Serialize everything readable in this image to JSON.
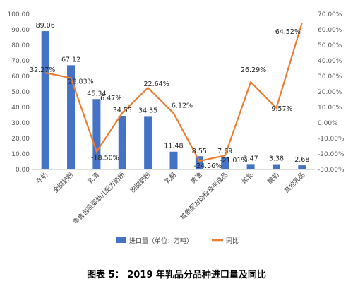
{
  "caption": "图表 5： 2019 年乳品分品种进口量及同比",
  "chart_data": {
    "type": "bar",
    "categories": [
      "牛奶",
      "全脂奶粉",
      "乳清",
      "零售包装婴幼儿配方奶粉",
      "脱脂奶粉",
      "乳酪",
      "黄油",
      "其他配方奶粉及半成品",
      "炼乳",
      "酸奶",
      "其他乳品"
    ],
    "series": [
      {
        "name": "进口量（单位：万吨）",
        "type": "bar",
        "axis": "left",
        "color": "#4472C4",
        "values": [
          89.06,
          67.12,
          45.34,
          34.55,
          34.35,
          11.48,
          8.55,
          7.69,
          3.47,
          3.38,
          2.68
        ],
        "labels": [
          "89.06",
          "67.12",
          "45.34",
          "34.55",
          "34.35",
          "11.48",
          "8.55",
          "7.69",
          "3.47",
          "3.38",
          "2.68"
        ]
      },
      {
        "name": "同比",
        "type": "line",
        "axis": "right",
        "color": "#ED7D31",
        "values": [
          32.27,
          28.83,
          -18.5,
          6.47,
          22.64,
          6.12,
          -24.56,
          -21.01,
          26.29,
          9.57,
          64.52
        ],
        "labels": [
          "32.27%",
          "28.83%",
          "-18.50%",
          "6.47%",
          "22.64%",
          "6.12%",
          "-24.56%",
          "-21.01%",
          "26.29%",
          "9.57%",
          "64.52%"
        ]
      }
    ],
    "y_left": {
      "min": 0,
      "max": 100,
      "ticks": [
        "0.00",
        "10.00",
        "20.00",
        "30.00",
        "40.00",
        "50.00",
        "60.00",
        "70.00",
        "80.00",
        "90.00",
        "100.00"
      ]
    },
    "y_right": {
      "min": -30,
      "max": 70,
      "ticks": [
        "-30.00%",
        "-20.00%",
        "-10.00%",
        "0.00%",
        "10.00%",
        "20.00%",
        "30.00%",
        "40.00%",
        "50.00%",
        "60.00%",
        "70.00%"
      ]
    },
    "grid": false,
    "legend": "bottom-center"
  }
}
